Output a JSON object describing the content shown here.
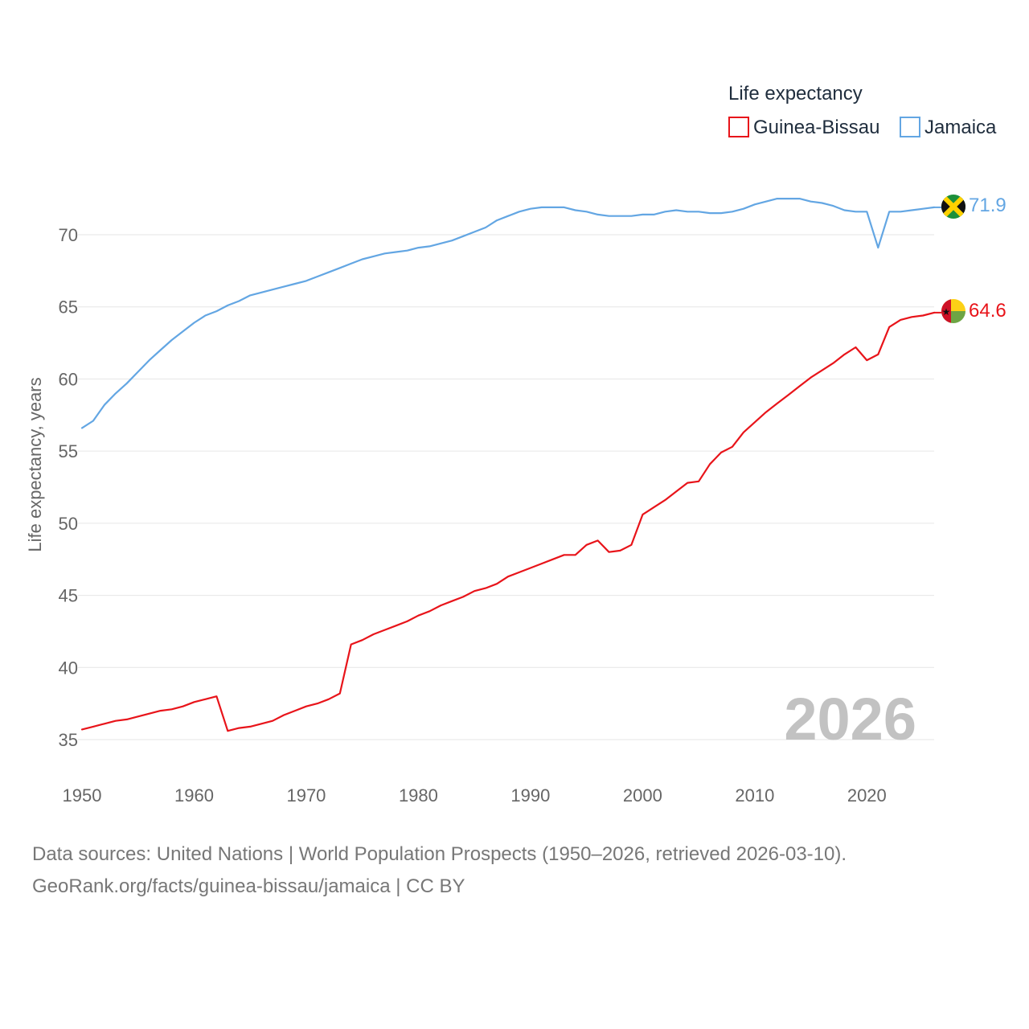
{
  "colors": {
    "guinea_bissau": "#e8141a",
    "jamaica": "#63a6e3",
    "grid": "#e6e6e6",
    "text": "#666666"
  },
  "legend": {
    "title": "Life expectancy",
    "items": [
      {
        "name": "Guinea-Bissau",
        "color": "#e8141a"
      },
      {
        "name": "Jamaica",
        "color": "#63a6e3"
      }
    ]
  },
  "end_labels": {
    "guinea_bissau": "64.6",
    "jamaica": "71.9"
  },
  "flags": {
    "guinea_bissau": "guinea-bissau-flag-icon",
    "jamaica": "jamaica-flag-icon"
  },
  "year_label": "2026",
  "footer": {
    "line1": "Data sources: United Nations | World Population Prospects (1950–2026, retrieved 2026-03-10).",
    "line2": "GeoRank.org/facts/guinea-bissau/jamaica | CC BY"
  },
  "chart_data": {
    "type": "line",
    "title": "Life expectancy",
    "xlabel": "",
    "ylabel": "Life expectancy, years",
    "xlim": [
      1950,
      2026
    ],
    "ylim": [
      33,
      72.5
    ],
    "x_ticks": [
      "1950",
      "1960",
      "1970",
      "1980",
      "1990",
      "2000",
      "2010",
      "2020"
    ],
    "y_ticks": [
      "35",
      "40",
      "45",
      "50",
      "55",
      "60",
      "65",
      "70"
    ],
    "grid": true,
    "legend_position": "top-right",
    "x": [
      1950,
      1951,
      1952,
      1953,
      1954,
      1955,
      1956,
      1957,
      1958,
      1959,
      1960,
      1961,
      1962,
      1963,
      1964,
      1965,
      1966,
      1967,
      1968,
      1969,
      1970,
      1971,
      1972,
      1973,
      1974,
      1975,
      1976,
      1977,
      1978,
      1979,
      1980,
      1981,
      1982,
      1983,
      1984,
      1985,
      1986,
      1987,
      1988,
      1989,
      1990,
      1991,
      1992,
      1993,
      1994,
      1995,
      1996,
      1997,
      1998,
      1999,
      2000,
      2001,
      2002,
      2003,
      2004,
      2005,
      2006,
      2007,
      2008,
      2009,
      2010,
      2011,
      2012,
      2013,
      2014,
      2015,
      2016,
      2017,
      2018,
      2019,
      2020,
      2021,
      2022,
      2023,
      2024,
      2025,
      2026
    ],
    "series": [
      {
        "name": "Guinea-Bissau",
        "values": [
          35.7,
          35.9,
          36.1,
          36.3,
          36.4,
          36.6,
          36.8,
          37.0,
          37.1,
          37.3,
          37.6,
          37.8,
          38.0,
          35.6,
          35.8,
          35.9,
          36.1,
          36.3,
          36.7,
          37.0,
          37.3,
          37.5,
          37.8,
          38.2,
          41.6,
          41.9,
          42.3,
          42.6,
          42.9,
          43.2,
          43.6,
          43.9,
          44.3,
          44.6,
          44.9,
          45.3,
          45.5,
          45.8,
          46.3,
          46.6,
          46.9,
          47.2,
          47.5,
          47.8,
          47.8,
          48.5,
          48.8,
          48.0,
          48.1,
          48.5,
          50.6,
          51.1,
          51.6,
          52.2,
          52.8,
          52.9,
          54.1,
          54.9,
          55.3,
          56.3,
          57.0,
          57.7,
          58.3,
          58.9,
          59.5,
          60.1,
          60.6,
          61.1,
          61.7,
          62.2,
          61.3,
          61.7,
          63.6,
          64.1,
          64.3,
          64.4,
          64.6
        ]
      },
      {
        "name": "Jamaica",
        "values": [
          56.6,
          57.1,
          58.2,
          59.0,
          59.7,
          60.5,
          61.3,
          62.0,
          62.7,
          63.3,
          63.9,
          64.4,
          64.7,
          65.1,
          65.4,
          65.8,
          66.0,
          66.2,
          66.4,
          66.6,
          66.8,
          67.1,
          67.4,
          67.7,
          68.0,
          68.3,
          68.5,
          68.7,
          68.8,
          68.9,
          69.1,
          69.2,
          69.4,
          69.6,
          69.9,
          70.2,
          70.5,
          71.0,
          71.3,
          71.6,
          71.8,
          71.9,
          71.9,
          71.9,
          71.7,
          71.6,
          71.4,
          71.3,
          71.3,
          71.3,
          71.4,
          71.4,
          71.6,
          71.7,
          71.6,
          71.6,
          71.5,
          71.5,
          71.6,
          71.8,
          72.1,
          72.3,
          72.5,
          72.5,
          72.5,
          72.3,
          72.2,
          72.0,
          71.7,
          71.6,
          71.6,
          69.1,
          71.6,
          71.6,
          71.7,
          71.8,
          71.9
        ]
      }
    ]
  }
}
